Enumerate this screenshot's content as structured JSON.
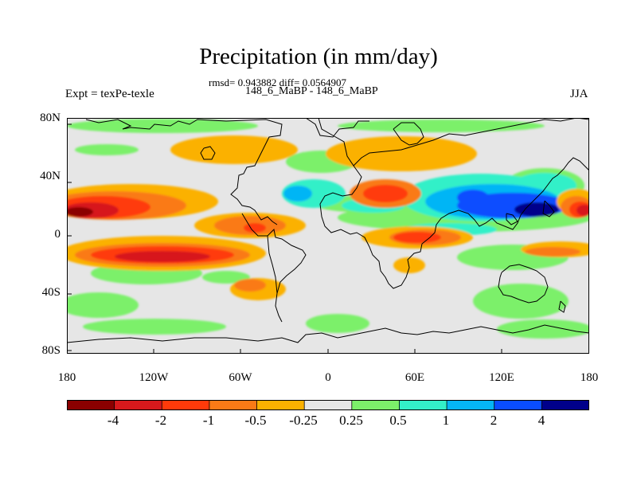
{
  "title": "Precipitation (in mm/day)",
  "stats_line": "rmsd= 0.943882 diff= 0.0564907",
  "experiment_line": "148_6_MaBP - 148_6_MaBP",
  "left_label": "Expt = texPe-texle",
  "right_label": "JJA",
  "y_axis": {
    "ticks": [
      "80N",
      "40N",
      "0",
      "40S",
      "80S"
    ],
    "values": [
      80,
      40,
      0,
      -40,
      -80
    ]
  },
  "x_axis": {
    "ticks": [
      "180",
      "120W",
      "60W",
      "0",
      "60E",
      "120E",
      "180"
    ],
    "values": [
      -180,
      -120,
      -60,
      0,
      60,
      120,
      180
    ]
  },
  "colorbar": {
    "labels": [
      "-4",
      "-2",
      "-1",
      "-0.5",
      "-0.25",
      "0.25",
      "0.5",
      "1",
      "2",
      "4"
    ],
    "colors": [
      "#8b0000",
      "#d7191c",
      "#ff3a0a",
      "#fa7a16",
      "#fbb100",
      "#e6e6e6",
      "#7cf06a",
      "#33f0c8",
      "#05b5f5",
      "#0a4dff",
      "#00008b"
    ]
  },
  "map_background": "#e6e6e6"
}
